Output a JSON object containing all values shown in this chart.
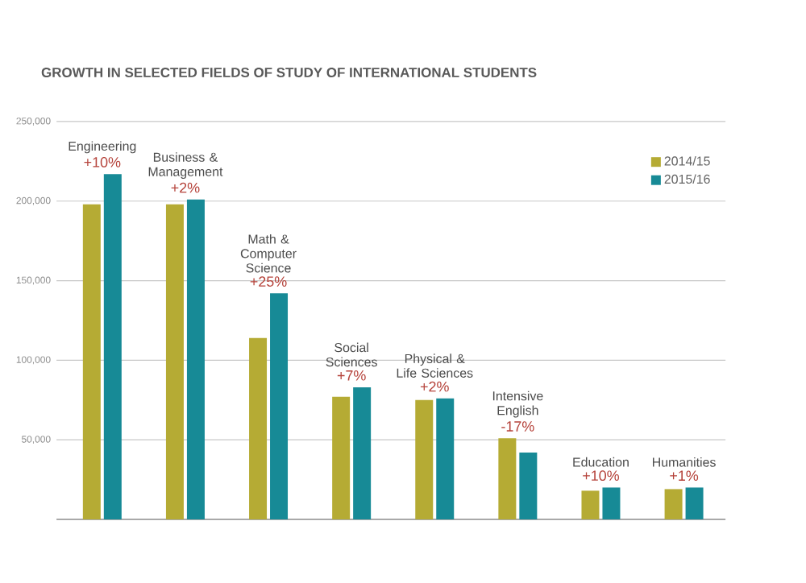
{
  "chart_data": {
    "type": "bar",
    "title": "GROWTH IN SELECTED FIELDS OF STUDY OF INTERNATIONAL STUDENTS",
    "categories": [
      "Engineering",
      "Business & Management",
      "Math & Computer Science",
      "Social Sciences",
      "Physical & Life Sciences",
      "Intensive English",
      "Education",
      "Humanities"
    ],
    "series": [
      {
        "name": "2014/15",
        "color": "#b5ab34",
        "values": [
          198000,
          198000,
          114000,
          77000,
          75000,
          51000,
          18000,
          19000
        ]
      },
      {
        "name": "2015/16",
        "color": "#178a96",
        "values": [
          217000,
          201000,
          142000,
          83000,
          76000,
          42000,
          20000,
          20000
        ]
      }
    ],
    "annotations": [
      "+10%",
      "+2%",
      "+25%",
      "+7%",
      "+2%",
      "-17%",
      "+10%",
      "+1%"
    ],
    "ylim": [
      0,
      250000
    ],
    "yticks": [
      {
        "value": 50000,
        "label": "50,000"
      },
      {
        "value": 100000,
        "label": "100,000"
      },
      {
        "value": 150000,
        "label": "150,000"
      },
      {
        "value": 200000,
        "label": "200,000"
      },
      {
        "value": 250000,
        "label": "250,000"
      }
    ],
    "grid": "y",
    "legend": "top right"
  }
}
